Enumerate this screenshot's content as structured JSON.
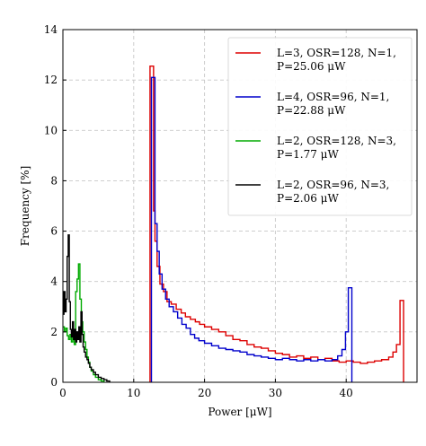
{
  "chart_data": {
    "type": "line",
    "title": "",
    "xlabel": "Power [μW]",
    "ylabel": "Frequency [%]",
    "xlim": [
      0,
      50
    ],
    "ylim": [
      0,
      14
    ],
    "xticks": [
      0,
      10,
      20,
      30,
      40
    ],
    "yticks": [
      0,
      2,
      4,
      6,
      8,
      10,
      12,
      14
    ],
    "grid": true,
    "legend_position": "top-right",
    "series": [
      {
        "name": "L=3, OSR=128, N=1, P=25.06 μW",
        "legend_lines": [
          "L=3, OSR=128, N=1,",
          "P=25.06 μW"
        ],
        "color": "#dd0000",
        "step": true,
        "points": [
          [
            12.3,
            0
          ],
          [
            12.3,
            12.55
          ],
          [
            12.8,
            12.55
          ],
          [
            12.8,
            6.8
          ],
          [
            13.0,
            6.8
          ],
          [
            13.0,
            5.6
          ],
          [
            13.3,
            5.6
          ],
          [
            13.3,
            4.6
          ],
          [
            13.7,
            4.6
          ],
          [
            13.7,
            3.9
          ],
          [
            14.2,
            3.9
          ],
          [
            14.2,
            3.6
          ],
          [
            14.7,
            3.6
          ],
          [
            14.7,
            3.2
          ],
          [
            15.3,
            3.2
          ],
          [
            15.3,
            3.1
          ],
          [
            16.0,
            3.1
          ],
          [
            16.0,
            2.9
          ],
          [
            16.7,
            2.9
          ],
          [
            16.7,
            2.75
          ],
          [
            17.3,
            2.75
          ],
          [
            17.3,
            2.6
          ],
          [
            18.0,
            2.6
          ],
          [
            18.0,
            2.5
          ],
          [
            18.7,
            2.5
          ],
          [
            18.7,
            2.4
          ],
          [
            19.3,
            2.4
          ],
          [
            19.3,
            2.3
          ],
          [
            20.0,
            2.3
          ],
          [
            20.0,
            2.2
          ],
          [
            21.0,
            2.2
          ],
          [
            21.0,
            2.1
          ],
          [
            22.0,
            2.1
          ],
          [
            22.0,
            2.0
          ],
          [
            23.0,
            2.0
          ],
          [
            23.0,
            1.85
          ],
          [
            24.0,
            1.85
          ],
          [
            24.0,
            1.7
          ],
          [
            25.0,
            1.7
          ],
          [
            25.0,
            1.65
          ],
          [
            26.0,
            1.65
          ],
          [
            26.0,
            1.5
          ],
          [
            27.0,
            1.5
          ],
          [
            27.0,
            1.4
          ],
          [
            28.0,
            1.4
          ],
          [
            28.0,
            1.35
          ],
          [
            29.0,
            1.35
          ],
          [
            29.0,
            1.25
          ],
          [
            30.0,
            1.25
          ],
          [
            30.0,
            1.15
          ],
          [
            31.0,
            1.15
          ],
          [
            31.0,
            1.1
          ],
          [
            32.0,
            1.1
          ],
          [
            32.0,
            1.0
          ],
          [
            33.0,
            1.0
          ],
          [
            33.0,
            1.05
          ],
          [
            34.0,
            1.05
          ],
          [
            34.0,
            0.95
          ],
          [
            35.0,
            0.95
          ],
          [
            35.0,
            1.0
          ],
          [
            36.0,
            1.0
          ],
          [
            36.0,
            0.9
          ],
          [
            37.0,
            0.9
          ],
          [
            37.0,
            0.95
          ],
          [
            38.0,
            0.95
          ],
          [
            38.0,
            0.85
          ],
          [
            39.0,
            0.85
          ],
          [
            39.0,
            0.8
          ],
          [
            40.0,
            0.8
          ],
          [
            40.0,
            0.85
          ],
          [
            41.0,
            0.85
          ],
          [
            41.0,
            0.8
          ],
          [
            42.0,
            0.8
          ],
          [
            42.0,
            0.75
          ],
          [
            43.0,
            0.75
          ],
          [
            43.0,
            0.8
          ],
          [
            44.0,
            0.8
          ],
          [
            44.0,
            0.85
          ],
          [
            45.0,
            0.85
          ],
          [
            45.0,
            0.9
          ],
          [
            46.0,
            0.9
          ],
          [
            46.0,
            1.0
          ],
          [
            46.6,
            1.0
          ],
          [
            46.6,
            1.2
          ],
          [
            47.1,
            1.2
          ],
          [
            47.1,
            1.5
          ],
          [
            47.6,
            1.5
          ],
          [
            47.6,
            3.25
          ],
          [
            48.1,
            3.25
          ],
          [
            48.1,
            0
          ]
        ]
      },
      {
        "name": "L=4, OSR=96, N=1, P=22.88 μW",
        "legend_lines": [
          "L=4, OSR=96, N=1,",
          "P=22.88 μW"
        ],
        "color": "#0000cc",
        "step": true,
        "points": [
          [
            12.5,
            0
          ],
          [
            12.5,
            12.1
          ],
          [
            13.0,
            12.1
          ],
          [
            13.0,
            6.3
          ],
          [
            13.3,
            6.3
          ],
          [
            13.3,
            5.2
          ],
          [
            13.6,
            5.2
          ],
          [
            13.6,
            4.3
          ],
          [
            14.0,
            4.3
          ],
          [
            14.0,
            3.7
          ],
          [
            14.5,
            3.7
          ],
          [
            14.5,
            3.3
          ],
          [
            15.0,
            3.3
          ],
          [
            15.0,
            3.0
          ],
          [
            15.6,
            3.0
          ],
          [
            15.6,
            2.8
          ],
          [
            16.2,
            2.8
          ],
          [
            16.2,
            2.55
          ],
          [
            16.8,
            2.55
          ],
          [
            16.8,
            2.3
          ],
          [
            17.4,
            2.3
          ],
          [
            17.4,
            2.15
          ],
          [
            18.0,
            2.15
          ],
          [
            18.0,
            1.9
          ],
          [
            18.6,
            1.9
          ],
          [
            18.6,
            1.75
          ],
          [
            19.2,
            1.75
          ],
          [
            19.2,
            1.65
          ],
          [
            20.0,
            1.65
          ],
          [
            20.0,
            1.55
          ],
          [
            21.0,
            1.55
          ],
          [
            21.0,
            1.45
          ],
          [
            22.0,
            1.45
          ],
          [
            22.0,
            1.35
          ],
          [
            23.0,
            1.35
          ],
          [
            23.0,
            1.3
          ],
          [
            24.0,
            1.3
          ],
          [
            24.0,
            1.25
          ],
          [
            25.0,
            1.25
          ],
          [
            25.0,
            1.2
          ],
          [
            26.0,
            1.2
          ],
          [
            26.0,
            1.1
          ],
          [
            27.0,
            1.1
          ],
          [
            27.0,
            1.05
          ],
          [
            28.0,
            1.05
          ],
          [
            28.0,
            1.0
          ],
          [
            29.0,
            1.0
          ],
          [
            29.0,
            0.95
          ],
          [
            30.0,
            0.95
          ],
          [
            30.0,
            0.9
          ],
          [
            31.0,
            0.9
          ],
          [
            31.0,
            0.95
          ],
          [
            32.0,
            0.95
          ],
          [
            32.0,
            0.9
          ],
          [
            33.0,
            0.9
          ],
          [
            33.0,
            0.85
          ],
          [
            34.0,
            0.85
          ],
          [
            34.0,
            0.9
          ],
          [
            35.0,
            0.9
          ],
          [
            35.0,
            0.85
          ],
          [
            36.0,
            0.85
          ],
          [
            36.0,
            0.9
          ],
          [
            37.0,
            0.9
          ],
          [
            37.0,
            0.85
          ],
          [
            38.0,
            0.85
          ],
          [
            38.0,
            0.9
          ],
          [
            38.8,
            0.9
          ],
          [
            38.8,
            1.05
          ],
          [
            39.4,
            1.05
          ],
          [
            39.4,
            1.3
          ],
          [
            39.9,
            1.3
          ],
          [
            39.9,
            2.0
          ],
          [
            40.3,
            2.0
          ],
          [
            40.3,
            3.75
          ],
          [
            40.8,
            3.75
          ],
          [
            40.8,
            0
          ]
        ]
      },
      {
        "name": "L=2, OSR=128, N=3, P=1.77 μW",
        "legend_lines": [
          "L=2, OSR=128, N=3,",
          "P=1.77 μW"
        ],
        "color": "#00aa00",
        "step": true,
        "points": [
          [
            0.0,
            2.2
          ],
          [
            0.2,
            2.2
          ],
          [
            0.2,
            2.0
          ],
          [
            0.4,
            2.0
          ],
          [
            0.4,
            2.15
          ],
          [
            0.6,
            2.15
          ],
          [
            0.6,
            1.85
          ],
          [
            0.8,
            1.85
          ],
          [
            0.8,
            1.7
          ],
          [
            1.0,
            1.7
          ],
          [
            1.0,
            1.9
          ],
          [
            1.2,
            1.9
          ],
          [
            1.2,
            1.6
          ],
          [
            1.4,
            1.6
          ],
          [
            1.4,
            1.8
          ],
          [
            1.6,
            1.8
          ],
          [
            1.6,
            1.5
          ],
          [
            1.8,
            1.5
          ],
          [
            1.8,
            3.6
          ],
          [
            2.0,
            3.6
          ],
          [
            2.0,
            4.1
          ],
          [
            2.2,
            4.1
          ],
          [
            2.2,
            4.7
          ],
          [
            2.4,
            4.7
          ],
          [
            2.4,
            3.3
          ],
          [
            2.6,
            3.3
          ],
          [
            2.6,
            2.4
          ],
          [
            2.8,
            2.4
          ],
          [
            2.8,
            2.0
          ],
          [
            3.0,
            2.0
          ],
          [
            3.0,
            1.6
          ],
          [
            3.2,
            1.6
          ],
          [
            3.2,
            1.3
          ],
          [
            3.4,
            1.3
          ],
          [
            3.4,
            1.0
          ],
          [
            3.6,
            1.0
          ],
          [
            3.6,
            0.8
          ],
          [
            3.8,
            0.8
          ],
          [
            3.8,
            0.6
          ],
          [
            4.0,
            0.6
          ],
          [
            4.0,
            0.45
          ],
          [
            4.3,
            0.45
          ],
          [
            4.3,
            0.3
          ],
          [
            4.6,
            0.3
          ],
          [
            4.6,
            0.2
          ],
          [
            5.0,
            0.2
          ],
          [
            5.0,
            0.1
          ],
          [
            5.4,
            0.1
          ],
          [
            5.4,
            0.05
          ],
          [
            5.8,
            0.05
          ],
          [
            5.8,
            0.0
          ]
        ]
      },
      {
        "name": "L=2, OSR=96, N=3, P=2.06 μW",
        "legend_lines": [
          "L=2, OSR=96, N=3,",
          "P=2.06 μW"
        ],
        "color": "#000000",
        "step": true,
        "points": [
          [
            0.0,
            2.7
          ],
          [
            0.15,
            2.7
          ],
          [
            0.15,
            3.6
          ],
          [
            0.3,
            3.6
          ],
          [
            0.3,
            2.8
          ],
          [
            0.45,
            2.8
          ],
          [
            0.45,
            3.3
          ],
          [
            0.6,
            3.3
          ],
          [
            0.6,
            5.0
          ],
          [
            0.75,
            5.0
          ],
          [
            0.75,
            5.85
          ],
          [
            0.9,
            5.85
          ],
          [
            0.9,
            3.2
          ],
          [
            1.05,
            3.2
          ],
          [
            1.05,
            2.1
          ],
          [
            1.2,
            2.1
          ],
          [
            1.2,
            1.8
          ],
          [
            1.35,
            1.8
          ],
          [
            1.35,
            2.4
          ],
          [
            1.5,
            2.4
          ],
          [
            1.5,
            1.7
          ],
          [
            1.65,
            1.7
          ],
          [
            1.65,
            2.1
          ],
          [
            1.8,
            2.1
          ],
          [
            1.8,
            1.6
          ],
          [
            1.95,
            1.6
          ],
          [
            1.95,
            2.0
          ],
          [
            2.1,
            2.0
          ],
          [
            2.1,
            1.7
          ],
          [
            2.25,
            1.7
          ],
          [
            2.25,
            2.2
          ],
          [
            2.4,
            2.2
          ],
          [
            2.4,
            1.6
          ],
          [
            2.55,
            1.6
          ],
          [
            2.55,
            2.8
          ],
          [
            2.7,
            2.8
          ],
          [
            2.7,
            1.9
          ],
          [
            2.85,
            1.9
          ],
          [
            2.85,
            1.4
          ],
          [
            3.0,
            1.4
          ],
          [
            3.0,
            1.2
          ],
          [
            3.2,
            1.2
          ],
          [
            3.2,
            1.0
          ],
          [
            3.4,
            1.0
          ],
          [
            3.4,
            0.9
          ],
          [
            3.6,
            0.9
          ],
          [
            3.6,
            0.75
          ],
          [
            3.8,
            0.75
          ],
          [
            3.8,
            0.6
          ],
          [
            4.0,
            0.6
          ],
          [
            4.0,
            0.5
          ],
          [
            4.3,
            0.5
          ],
          [
            4.3,
            0.4
          ],
          [
            4.6,
            0.4
          ],
          [
            4.6,
            0.3
          ],
          [
            5.0,
            0.3
          ],
          [
            5.0,
            0.2
          ],
          [
            5.4,
            0.2
          ],
          [
            5.4,
            0.15
          ],
          [
            5.8,
            0.15
          ],
          [
            5.8,
            0.1
          ],
          [
            6.2,
            0.1
          ],
          [
            6.2,
            0.05
          ],
          [
            6.6,
            0.05
          ],
          [
            6.6,
            0.0
          ]
        ]
      }
    ]
  }
}
